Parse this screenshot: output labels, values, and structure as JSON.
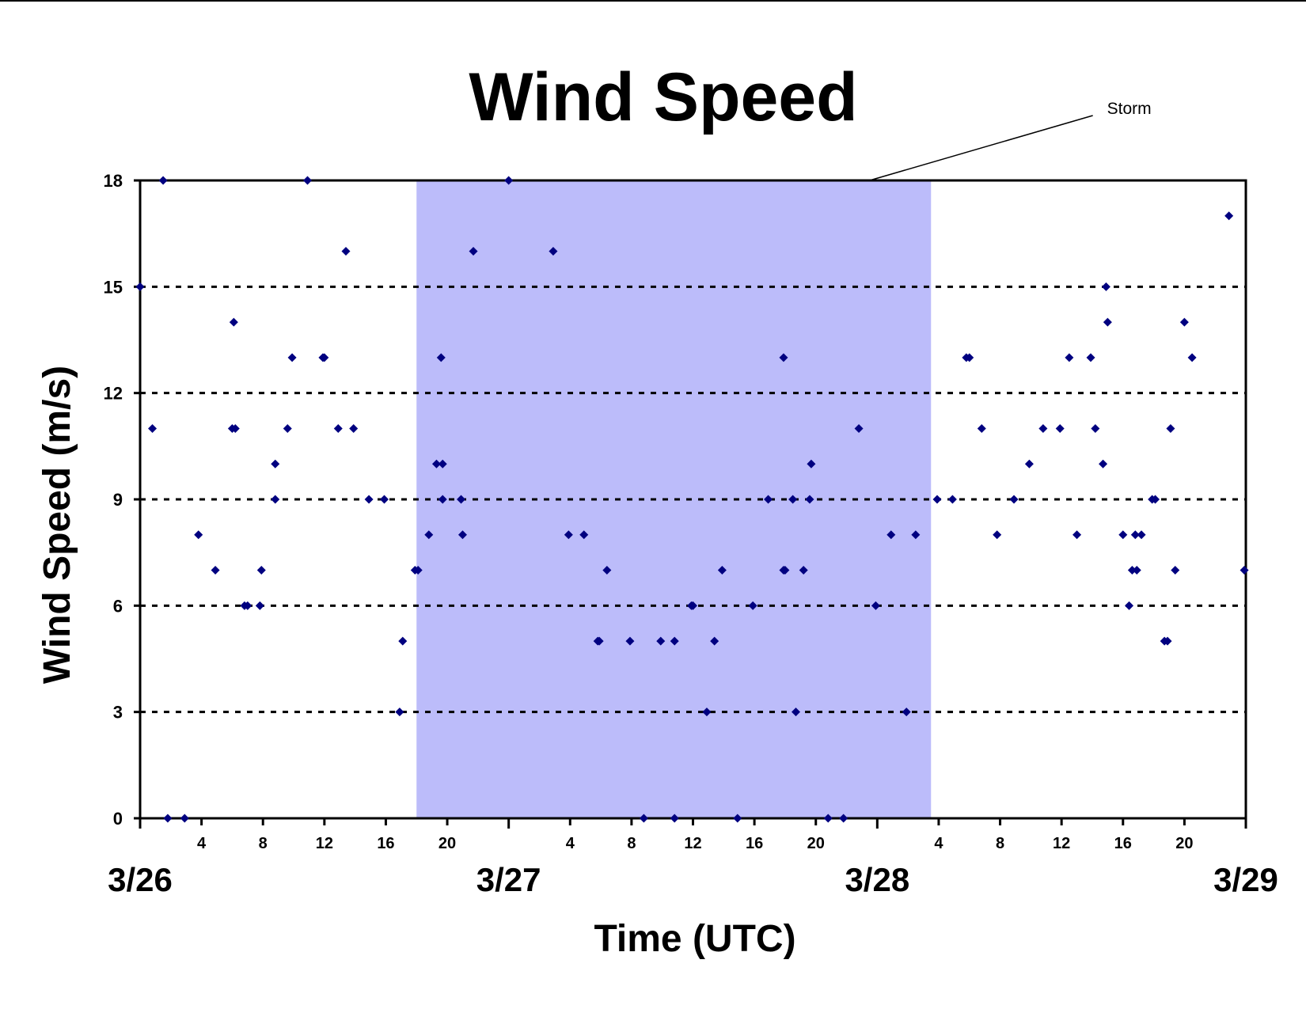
{
  "chart_data": {
    "type": "scatter",
    "title": "Wind Speed",
    "xlabel": "Time (UTC)",
    "ylabel": "Wind Speed (m/s)",
    "x_unit": "hours since 3/26 00:00 UTC",
    "xlim": [
      0,
      72
    ],
    "ylim": [
      0,
      18
    ],
    "y_ticks": [
      0,
      3,
      6,
      9,
      12,
      15,
      18
    ],
    "x_hour_ticks": [
      {
        "x": 4,
        "label": "4"
      },
      {
        "x": 8,
        "label": "8"
      },
      {
        "x": 12,
        "label": "12"
      },
      {
        "x": 16,
        "label": "16"
      },
      {
        "x": 20,
        "label": "20"
      },
      {
        "x": 28,
        "label": "4"
      },
      {
        "x": 32,
        "label": "8"
      },
      {
        "x": 36,
        "label": "12"
      },
      {
        "x": 40,
        "label": "16"
      },
      {
        "x": 44,
        "label": "20"
      },
      {
        "x": 52,
        "label": "4"
      },
      {
        "x": 56,
        "label": "8"
      },
      {
        "x": 60,
        "label": "12"
      },
      {
        "x": 64,
        "label": "16"
      },
      {
        "x": 68,
        "label": "20"
      }
    ],
    "x_day_labels": [
      {
        "x": 0,
        "label": "3/26"
      },
      {
        "x": 24,
        "label": "3/27"
      },
      {
        "x": 48,
        "label": "3/28"
      },
      {
        "x": 72,
        "label": "3/29"
      }
    ],
    "grid": "horizontal dotted",
    "shaded_region": {
      "x_start": 18,
      "x_end": 51.5,
      "color": "#bcbcfa"
    },
    "annotation": {
      "text": "Storm",
      "x": 47.5,
      "y": 18
    },
    "marker_color": "#000080",
    "points": [
      [
        0,
        15
      ],
      [
        0.8,
        11
      ],
      [
        1.5,
        18
      ],
      [
        1.8,
        0
      ],
      [
        2.9,
        0
      ],
      [
        3.8,
        8
      ],
      [
        4.9,
        7
      ],
      [
        6,
        11
      ],
      [
        6.1,
        14
      ],
      [
        6.2,
        11
      ],
      [
        6.8,
        6
      ],
      [
        7,
        6
      ],
      [
        7.9,
        7
      ],
      [
        7.8,
        6
      ],
      [
        8.8,
        10
      ],
      [
        8.8,
        9
      ],
      [
        9.6,
        11
      ],
      [
        9.9,
        13
      ],
      [
        10.9,
        18
      ],
      [
        11.9,
        13
      ],
      [
        12,
        13
      ],
      [
        12.9,
        11
      ],
      [
        13.4,
        16
      ],
      [
        13.9,
        11
      ],
      [
        14.9,
        9
      ],
      [
        15.9,
        9
      ],
      [
        16.9,
        3
      ],
      [
        17.1,
        5
      ],
      [
        17.9,
        7
      ],
      [
        18.1,
        7
      ],
      [
        18.8,
        8
      ],
      [
        19.3,
        10
      ],
      [
        19.7,
        10
      ],
      [
        19.6,
        13
      ],
      [
        19.7,
        9
      ],
      [
        20.9,
        9
      ],
      [
        21,
        8
      ],
      [
        21.7,
        16
      ],
      [
        24,
        18
      ],
      [
        26.9,
        16
      ],
      [
        27.9,
        8
      ],
      [
        28.9,
        8
      ],
      [
        29.8,
        5
      ],
      [
        29.9,
        5
      ],
      [
        30.4,
        7
      ],
      [
        31.9,
        5
      ],
      [
        32.8,
        0
      ],
      [
        33.9,
        5
      ],
      [
        34.8,
        5
      ],
      [
        34.8,
        0
      ],
      [
        35.9,
        6
      ],
      [
        36,
        6
      ],
      [
        36.9,
        3
      ],
      [
        37.4,
        5
      ],
      [
        37.9,
        7
      ],
      [
        38.9,
        0
      ],
      [
        39.9,
        6
      ],
      [
        40.9,
        9
      ],
      [
        41.9,
        7
      ],
      [
        41.9,
        13
      ],
      [
        42,
        7
      ],
      [
        42.5,
        9
      ],
      [
        42.7,
        3
      ],
      [
        43.2,
        7
      ],
      [
        43.6,
        9
      ],
      [
        43.7,
        10
      ],
      [
        44.8,
        0
      ],
      [
        45.8,
        0
      ],
      [
        46.8,
        11
      ],
      [
        47.9,
        6
      ],
      [
        48.9,
        8
      ],
      [
        49.9,
        3
      ],
      [
        50.5,
        8
      ],
      [
        51.9,
        9
      ],
      [
        52.9,
        9
      ],
      [
        53.8,
        13
      ],
      [
        54,
        13
      ],
      [
        54.8,
        11
      ],
      [
        55.8,
        8
      ],
      [
        56.9,
        9
      ],
      [
        57.9,
        10
      ],
      [
        58.8,
        11
      ],
      [
        59.9,
        11
      ],
      [
        60.5,
        13
      ],
      [
        61,
        8
      ],
      [
        61.9,
        13
      ],
      [
        62.2,
        11
      ],
      [
        62.7,
        10
      ],
      [
        62.9,
        15
      ],
      [
        63,
        14
      ],
      [
        64,
        8
      ],
      [
        64.4,
        6
      ],
      [
        64.6,
        7
      ],
      [
        64.8,
        8
      ],
      [
        64.9,
        7
      ],
      [
        65.2,
        8
      ],
      [
        65.9,
        9
      ],
      [
        66.1,
        9
      ],
      [
        66.7,
        5
      ],
      [
        66.9,
        5
      ],
      [
        67.1,
        11
      ],
      [
        67.4,
        7
      ],
      [
        68,
        14
      ],
      [
        68.5,
        13
      ],
      [
        70.9,
        17
      ],
      [
        71.9,
        7
      ]
    ]
  }
}
